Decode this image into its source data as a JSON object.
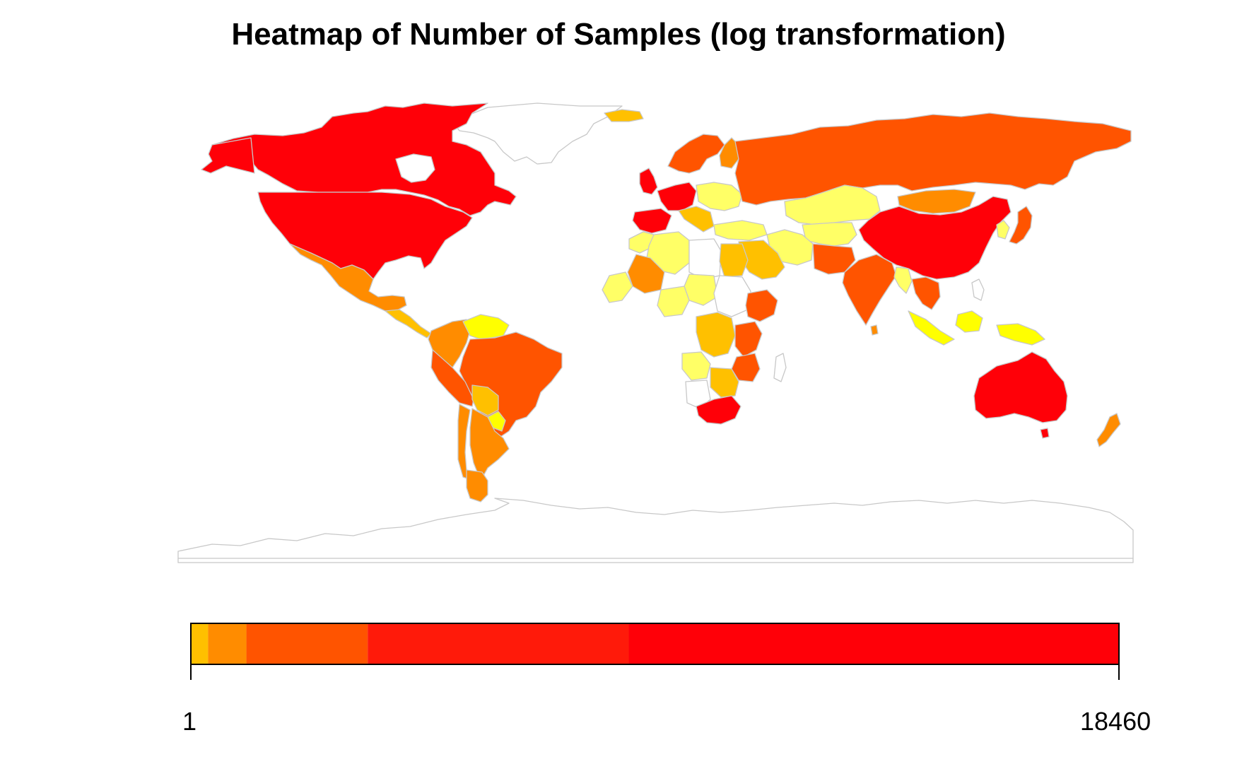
{
  "title": "Heatmap of Number of Samples (log transformation)",
  "legend": {
    "min_label": "1",
    "max_label": "18460",
    "min_value": 1,
    "max_value": 18460,
    "scale": "log",
    "palette": [
      "#ffff66",
      "#ffc000",
      "#ff8c00",
      "#ff5400",
      "#ff1a0a",
      "#ff0008"
    ],
    "breaks": [
      1,
      1.2,
      1.8,
      6.5,
      103,
      18460
    ]
  },
  "colors": {
    "border": "#c8c8c8",
    "no_data": "#ffffff",
    "very_high": "#ff0008",
    "high": "#ff5400",
    "medium": "#ff8c00",
    "low_medium": "#ffc000",
    "low": "#ffff66",
    "lowest": "#ffff00"
  },
  "chart_data": {
    "type": "heatmap",
    "title": "Heatmap of Number of Samples (log transformation)",
    "scale": "log",
    "range": [
      1,
      18460
    ],
    "regions": [
      {
        "name": "Canada",
        "level": "very_high"
      },
      {
        "name": "United States",
        "level": "very_high"
      },
      {
        "name": "China",
        "level": "very_high"
      },
      {
        "name": "Australia",
        "level": "very_high"
      },
      {
        "name": "South Africa",
        "level": "very_high"
      },
      {
        "name": "United Kingdom",
        "level": "very_high"
      },
      {
        "name": "Spain",
        "level": "very_high"
      },
      {
        "name": "Germany",
        "level": "very_high"
      },
      {
        "name": "Russia",
        "level": "high"
      },
      {
        "name": "India",
        "level": "high"
      },
      {
        "name": "Brazil",
        "level": "high"
      },
      {
        "name": "Japan",
        "level": "high"
      },
      {
        "name": "Kenya",
        "level": "high"
      },
      {
        "name": "Ethiopia",
        "level": "high"
      },
      {
        "name": "Peru",
        "level": "high"
      },
      {
        "name": "Vietnam",
        "level": "high"
      },
      {
        "name": "Mexico",
        "level": "medium"
      },
      {
        "name": "Argentina",
        "level": "medium"
      },
      {
        "name": "Mongolia",
        "level": "medium"
      },
      {
        "name": "New Zealand",
        "level": "medium"
      },
      {
        "name": "Colombia",
        "level": "medium"
      },
      {
        "name": "Mali",
        "level": "medium"
      },
      {
        "name": "Saudi Arabia",
        "level": "low_medium"
      },
      {
        "name": "Egypt",
        "level": "low_medium"
      },
      {
        "name": "DR Congo",
        "level": "low_medium"
      },
      {
        "name": "Bolivia",
        "level": "low_medium"
      },
      {
        "name": "Kazakhstan",
        "level": "low"
      },
      {
        "name": "Algeria",
        "level": "low"
      },
      {
        "name": "Angola",
        "level": "low"
      },
      {
        "name": "Chad",
        "level": "low"
      },
      {
        "name": "Nigeria",
        "level": "low"
      },
      {
        "name": "Iran",
        "level": "low"
      },
      {
        "name": "Indonesia",
        "level": "lowest"
      },
      {
        "name": "Venezuela",
        "level": "lowest"
      },
      {
        "name": "Greenland",
        "level": "no_data"
      },
      {
        "name": "Antarctica",
        "level": "no_data"
      },
      {
        "name": "Libya",
        "level": "no_data"
      },
      {
        "name": "Sudan",
        "level": "no_data"
      },
      {
        "name": "Namibia",
        "level": "no_data"
      }
    ]
  }
}
